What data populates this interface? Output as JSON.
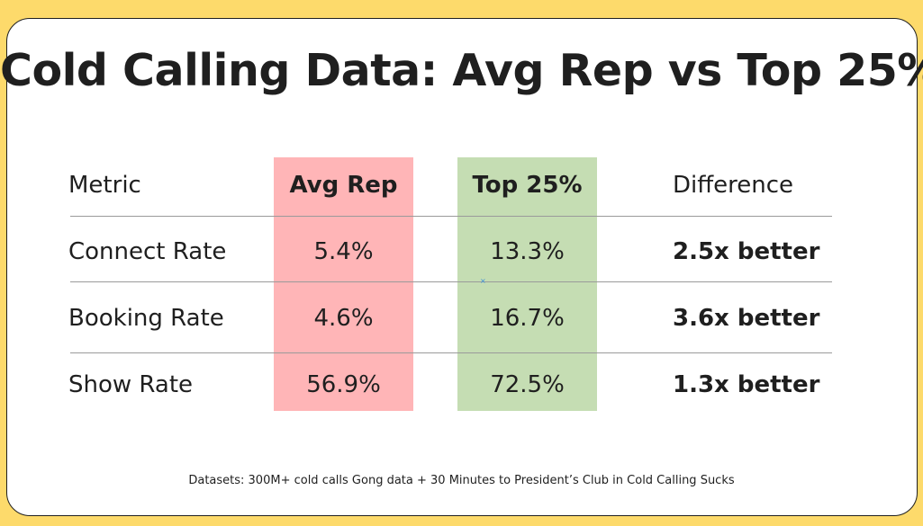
{
  "title": "Cold Calling Data: Avg Rep vs Top 25%",
  "colors": {
    "background": "#FDDA6B",
    "card": "#FFFFFF",
    "avg_column": "#FFB5B7",
    "top_column": "#C5DDB3",
    "text": "#1F1F1F",
    "rule": "#9A9A9A"
  },
  "chart_data": {
    "type": "table",
    "title": "Cold Calling Data: Avg Rep vs Top 25%",
    "columns": [
      "Metric",
      "Avg Rep",
      "Top 25%",
      "Difference"
    ],
    "rows": [
      {
        "metric": "Connect Rate",
        "avg_rep": "5.4%",
        "top_25": "13.3%",
        "difference": "2.5x better"
      },
      {
        "metric": "Booking Rate",
        "avg_rep": "4.6%",
        "top_25": "16.7%",
        "difference": "3.6x better"
      },
      {
        "metric": "Show Rate",
        "avg_rep": "56.9%",
        "top_25": "72.5%",
        "difference": "1.3x better"
      }
    ]
  },
  "footnote": "Datasets: 300M+ cold calls Gong data + 30 Minutes to President’s Club in Cold Calling Sucks"
}
